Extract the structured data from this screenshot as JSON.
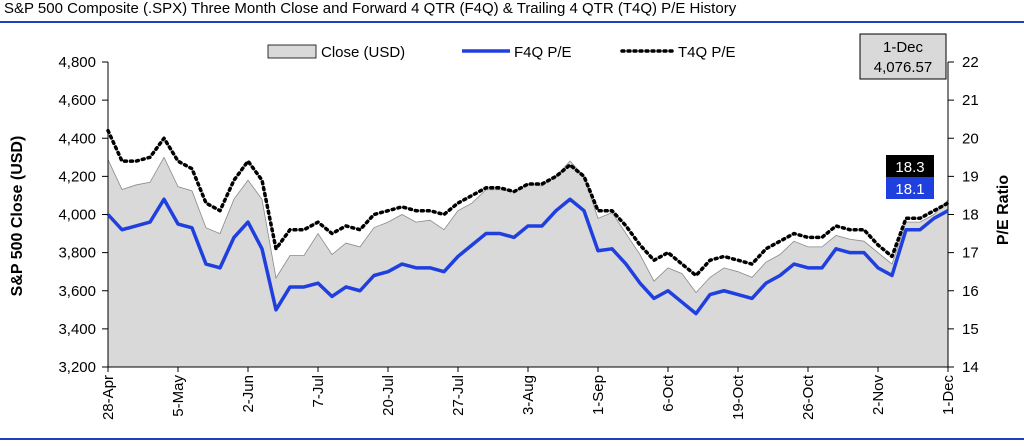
{
  "chart_data": {
    "type": "area",
    "title": "S&P 500 Composite (.SPX) Three Month Close and Forward 4 QTR (F4Q) & Trailing 4 QTR (T4Q) P/E History",
    "ylabel": "S&P 500 Close (USD)",
    "y2label": "P/E Ratio",
    "ylim": [
      3200,
      4800
    ],
    "y2lim": [
      14,
      22
    ],
    "yticks": [
      "3,200",
      "3,400",
      "3,600",
      "3,800",
      "4,000",
      "4,200",
      "4,400",
      "4,600",
      "4,800"
    ],
    "y2ticks": [
      "14",
      "15",
      "16",
      "17",
      "18",
      "19",
      "20",
      "21",
      "22"
    ],
    "xtick_labels": [
      "28-Apr",
      "5-May",
      "2-Jun",
      "7-Jul",
      "20-Jul",
      "27-Jul",
      "3-Aug",
      "1-Sep",
      "6-Oct",
      "19-Oct",
      "26-Oct",
      "2-Nov",
      "1-Dec"
    ],
    "legend_placement": "top",
    "series": [
      {
        "name": "Close (USD)",
        "axis": "left",
        "style": "area",
        "color": "#d9d9d9",
        "values": [
          4288,
          4131,
          4155,
          4169,
          4300,
          4146,
          4124,
          3930,
          3900,
          4081,
          4180,
          4080,
          3667,
          3785,
          3785,
          3900,
          3790,
          3850,
          3830,
          3931,
          3960,
          4000,
          3960,
          3970,
          3920,
          4020,
          4060,
          4130,
          4130,
          4120,
          4160,
          4150,
          4200,
          4280,
          4200,
          3980,
          4010,
          3900,
          3790,
          3650,
          3720,
          3690,
          3590,
          3670,
          3720,
          3700,
          3670,
          3750,
          3790,
          3860,
          3830,
          3830,
          3890,
          3870,
          3860,
          3800,
          3740,
          3960,
          3960,
          4000,
          4077
        ]
      },
      {
        "name": "F4Q P/E",
        "axis": "right",
        "style": "line",
        "color": "#1f3fdf",
        "values": [
          18.0,
          17.6,
          17.7,
          17.8,
          18.4,
          17.75,
          17.65,
          16.7,
          16.6,
          17.4,
          17.8,
          17.1,
          15.5,
          16.1,
          16.1,
          16.2,
          15.85,
          16.1,
          16.0,
          16.4,
          16.5,
          16.7,
          16.6,
          16.6,
          16.5,
          16.9,
          17.2,
          17.5,
          17.5,
          17.4,
          17.7,
          17.7,
          18.1,
          18.4,
          18.1,
          17.05,
          17.1,
          16.7,
          16.2,
          15.8,
          16.0,
          15.7,
          15.4,
          15.9,
          16.0,
          15.9,
          15.8,
          16.2,
          16.4,
          16.7,
          16.6,
          16.6,
          17.1,
          17.0,
          17.0,
          16.6,
          16.4,
          17.6,
          17.6,
          17.9,
          18.1
        ]
      },
      {
        "name": "T4Q P/E",
        "axis": "right",
        "style": "dotted",
        "color": "#000000",
        "values": [
          20.2,
          19.4,
          19.4,
          19.5,
          20.0,
          19.4,
          19.2,
          18.3,
          18.1,
          18.9,
          19.4,
          18.9,
          17.1,
          17.6,
          17.6,
          17.8,
          17.5,
          17.7,
          17.6,
          18.0,
          18.1,
          18.2,
          18.1,
          18.1,
          18.0,
          18.3,
          18.5,
          18.7,
          18.7,
          18.6,
          18.8,
          18.8,
          19.0,
          19.3,
          19.0,
          18.1,
          18.1,
          17.7,
          17.2,
          16.8,
          17.0,
          16.7,
          16.4,
          16.8,
          16.9,
          16.8,
          16.7,
          17.1,
          17.3,
          17.5,
          17.4,
          17.4,
          17.7,
          17.6,
          17.6,
          17.2,
          16.9,
          17.9,
          17.9,
          18.1,
          18.3
        ]
      }
    ],
    "callouts": {
      "last_date": "1-Dec",
      "last_close": "4,076.57",
      "t4q_last": "18.3",
      "f4q_last": "18.1"
    }
  }
}
